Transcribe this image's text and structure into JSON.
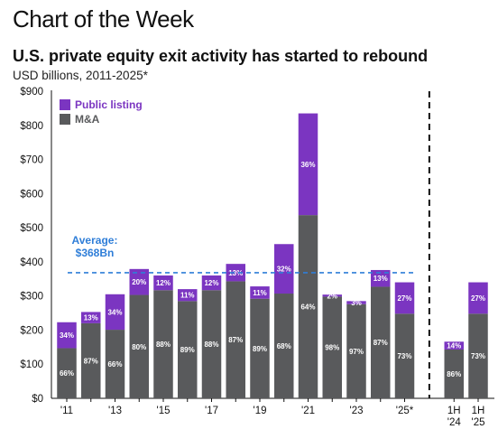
{
  "header": {
    "text": "Chart of the Week"
  },
  "colors": {
    "public_listing": "#7b35c1",
    "ma": "#595a5c",
    "average_line": "#2f7ed8",
    "divider": "#111111"
  },
  "chart_data": {
    "type": "bar",
    "stacked": true,
    "title": "U.S. private equity exit activity has started to rebound",
    "subtitle": "USD billions, 2011-2025*",
    "ylim": [
      0,
      900
    ],
    "yticks": [
      0,
      100,
      200,
      300,
      400,
      500,
      600,
      700,
      800,
      900
    ],
    "ytick_labels": [
      "$0",
      "$100",
      "$200",
      "$300",
      "$400",
      "$500",
      "$600",
      "$700",
      "$800",
      "$900"
    ],
    "categories": [
      "2011",
      "2012",
      "2013",
      "2014",
      "2015",
      "2016",
      "2017",
      "2018",
      "2019",
      "2020",
      "2021",
      "2022",
      "2023",
      "2024",
      "2025*",
      "1H 2024",
      "1H 2025"
    ],
    "xtick_labels": [
      {
        "index": 0,
        "lines": [
          "'11"
        ]
      },
      {
        "index": 2,
        "lines": [
          "'13"
        ]
      },
      {
        "index": 4,
        "lines": [
          "'15"
        ]
      },
      {
        "index": 6,
        "lines": [
          "'17"
        ]
      },
      {
        "index": 8,
        "lines": [
          "'19"
        ]
      },
      {
        "index": 10,
        "lines": [
          "'21"
        ]
      },
      {
        "index": 12,
        "lines": [
          "'23"
        ]
      },
      {
        "index": 14,
        "lines": [
          "'25*"
        ]
      },
      {
        "index": 15,
        "lines": [
          "1H",
          "'24"
        ]
      },
      {
        "index": 16,
        "lines": [
          "1H",
          "'25"
        ]
      }
    ],
    "series": [
      {
        "name": "M&A",
        "values": [
          147,
          220,
          201,
          303,
          317,
          285,
          317,
          343,
          292,
          307,
          537,
          298,
          276,
          327,
          248,
          143,
          248
        ],
        "labels": [
          "66%",
          "87%",
          "66%",
          "80%",
          "88%",
          "89%",
          "88%",
          "87%",
          "89%",
          "68%",
          "64%",
          "98%",
          "97%",
          "87%",
          "73%",
          "86%",
          "73%"
        ]
      },
      {
        "name": "Public listing",
        "values": [
          76,
          33,
          104,
          76,
          43,
          35,
          43,
          51,
          36,
          145,
          298,
          6,
          9,
          49,
          92,
          23,
          92
        ],
        "labels": [
          "34%",
          "13%",
          "34%",
          "20%",
          "12%",
          "11%",
          "12%",
          "13%",
          "11%",
          "32%",
          "36%",
          "2%",
          "3%",
          "13%",
          "27%",
          "14%",
          "27%"
        ]
      }
    ],
    "legend": [
      "Public listing",
      "M&A"
    ],
    "legend_position": "top-left",
    "average": {
      "value": 368,
      "label_line1": "Average:",
      "label_line2": "$368Bn"
    },
    "divider_after_index": 14,
    "grid": false
  }
}
